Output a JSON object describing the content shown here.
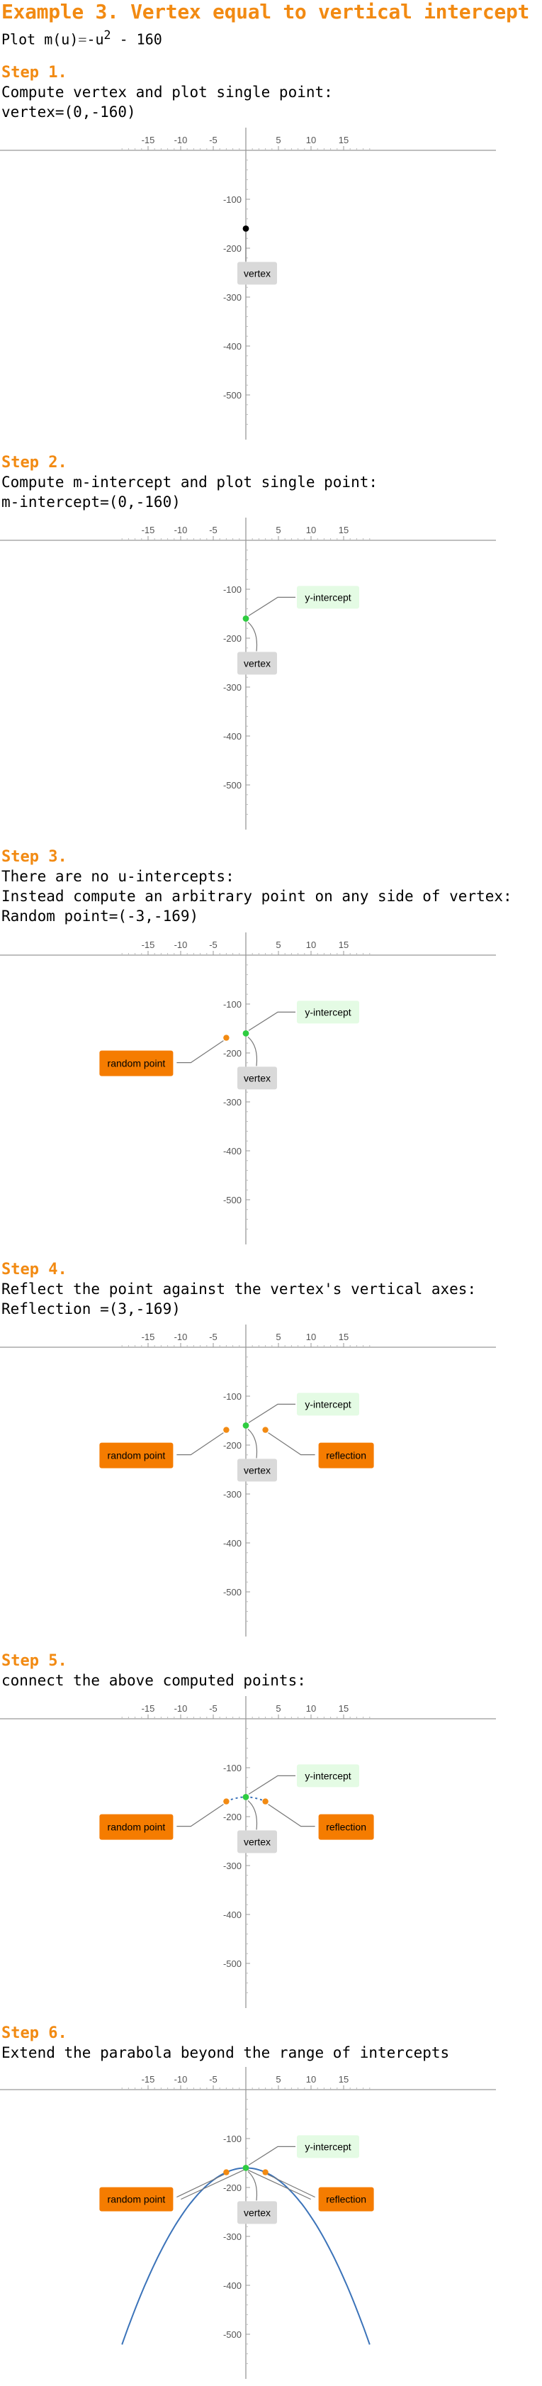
{
  "title": "Example 3. Vertex equal to vertical intercept",
  "plot_line": {
    "prefix": "Plot ",
    "func": "m(u)",
    "eq": "=",
    "rhs": "-u",
    "exp": "2",
    "rest": " - 160"
  },
  "x_ticks": [
    "-15",
    "-10",
    "-5",
    "5",
    "10",
    "15"
  ],
  "y_ticks": [
    "-100",
    "-200",
    "-300",
    "-400",
    "-500"
  ],
  "labels": {
    "vertex": "vertex",
    "y_intercept": "y-intercept",
    "random_point": "random point",
    "reflection": "reflection"
  },
  "colors": {
    "accent": "#f28a12",
    "intercept_point": "#2ecc40",
    "vertex_point": "#000000",
    "curve": "#3b73b9",
    "label_gray": "#d9d9d9",
    "label_green": "#e4fbe4",
    "label_orange": "#f57c00"
  },
  "steps": [
    {
      "heading": "Step 1.",
      "lines": [
        "Compute vertex and plot single point:",
        "vertex=(0,-160)"
      ],
      "chart_data": {
        "type": "scatter",
        "xlim": [
          -19,
          19
        ],
        "ylim": [
          -560,
          0
        ],
        "points": [
          {
            "label": "vertex",
            "x": 0,
            "y": -160
          }
        ]
      }
    },
    {
      "heading": "Step 2.",
      "lines": [
        "Compute m-intercept and plot single point:",
        "m-intercept=(0,-160)"
      ],
      "chart_data": {
        "type": "scatter",
        "xlim": [
          -19,
          19
        ],
        "ylim": [
          -560,
          0
        ],
        "points": [
          {
            "label": "y-intercept",
            "x": 0,
            "y": -160
          },
          {
            "label": "vertex",
            "x": 0,
            "y": -160
          }
        ]
      }
    },
    {
      "heading": "Step 3.",
      "lines": [
        "There are no u-intercepts:",
        "Instead compute an arbitrary point on any side of vertex:",
        "Random point=(-3,-169)"
      ],
      "chart_data": {
        "type": "scatter",
        "xlim": [
          -19,
          19
        ],
        "ylim": [
          -560,
          0
        ],
        "points": [
          {
            "label": "y-intercept",
            "x": 0,
            "y": -160
          },
          {
            "label": "vertex",
            "x": 0,
            "y": -160
          },
          {
            "label": "random point",
            "x": -3,
            "y": -169
          }
        ]
      }
    },
    {
      "heading": "Step 4.",
      "lines": [
        "Reflect the point against the vertex's vertical axes:",
        "Reflection =(3,-169)"
      ],
      "chart_data": {
        "type": "scatter",
        "xlim": [
          -19,
          19
        ],
        "ylim": [
          -560,
          0
        ],
        "points": [
          {
            "label": "y-intercept",
            "x": 0,
            "y": -160
          },
          {
            "label": "vertex",
            "x": 0,
            "y": -160
          },
          {
            "label": "random point",
            "x": -3,
            "y": -169
          },
          {
            "label": "reflection",
            "x": 3,
            "y": -169
          }
        ]
      }
    },
    {
      "heading": "Step 5.",
      "lines": [
        "connect the above computed points:"
      ],
      "chart_data": {
        "type": "line",
        "xlim": [
          -19,
          19
        ],
        "ylim": [
          -560,
          0
        ],
        "points": [
          {
            "label": "y-intercept",
            "x": 0,
            "y": -160
          },
          {
            "label": "vertex",
            "x": 0,
            "y": -160
          },
          {
            "label": "random point",
            "x": -3,
            "y": -169
          },
          {
            "label": "reflection",
            "x": 3,
            "y": -169
          }
        ],
        "curve_x_range": [
          -3,
          3
        ],
        "function": "m(u) = -u^2 - 160"
      }
    },
    {
      "heading": "Step 6.",
      "lines": [
        "Extend the parabola beyond the range of intercepts"
      ],
      "chart_data": {
        "type": "line",
        "xlim": [
          -19,
          19
        ],
        "ylim": [
          -560,
          0
        ],
        "points": [
          {
            "label": "y-intercept",
            "x": 0,
            "y": -160
          },
          {
            "label": "vertex",
            "x": 0,
            "y": -160
          },
          {
            "label": "random point",
            "x": -3,
            "y": -169
          },
          {
            "label": "reflection",
            "x": 3,
            "y": -169
          }
        ],
        "curve_x_range": [
          -19,
          19
        ],
        "function": "m(u) = -u^2 - 160"
      }
    }
  ]
}
